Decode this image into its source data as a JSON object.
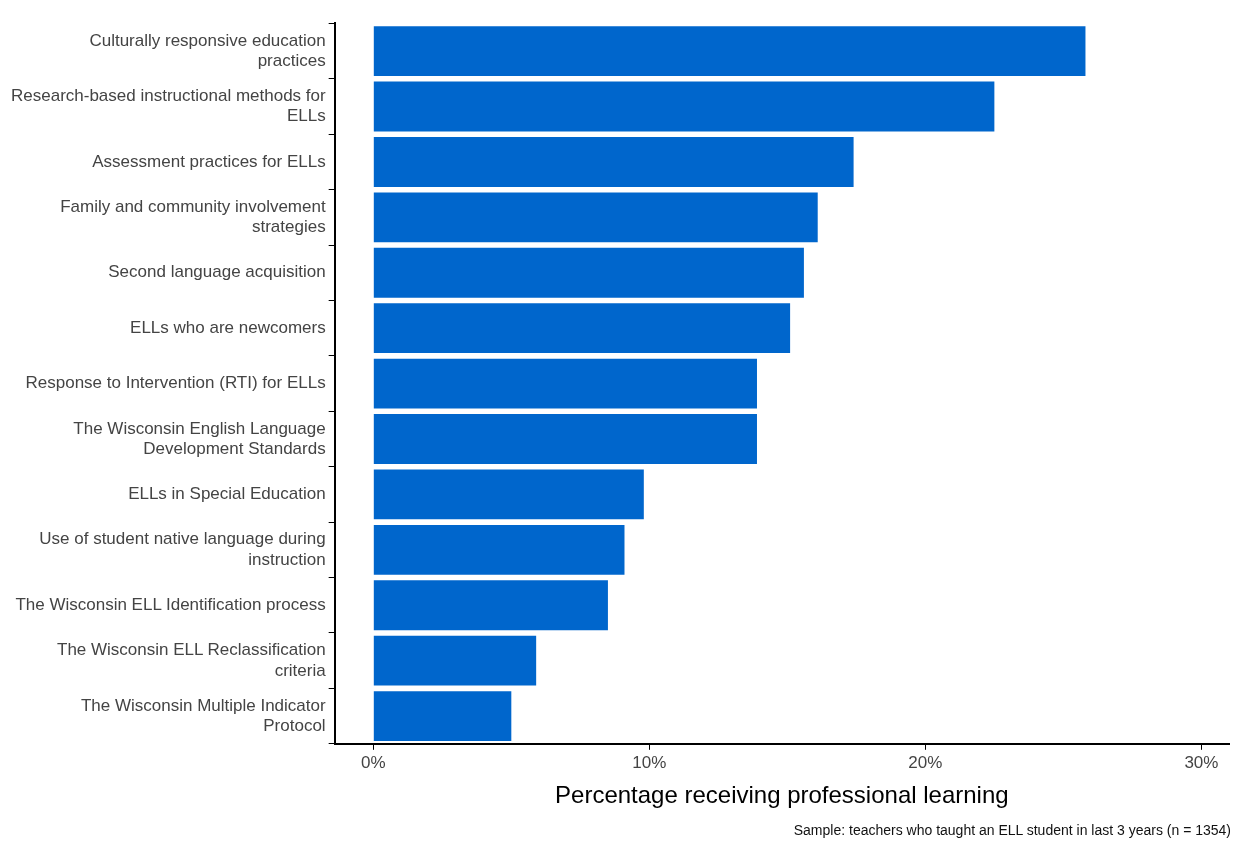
{
  "chart_data": {
    "type": "bar",
    "orientation": "horizontal",
    "categories": [
      "Culturally responsive education practices",
      "Research-based instructional methods for ELLs",
      "Assessment practices for ELLs",
      "Family and community involvement strategies",
      "Second language acquisition",
      "ELLs who are newcomers",
      "Response to Intervention (RTI) for ELLs",
      "The Wisconsin English Language Development Standards",
      "ELLs in Special Education",
      "Use of student native language during instruction",
      "The Wisconsin ELL Identification process",
      "The Wisconsin ELL Reclassification criteria",
      "The Wisconsin Multiple Indicator Protocol"
    ],
    "values": [
      25.8,
      22.5,
      17.4,
      16.1,
      15.6,
      15.1,
      13.9,
      13.9,
      9.8,
      9.1,
      8.5,
      5.9,
      5.0
    ],
    "color": "#0066cc",
    "xlim": [
      -1.4,
      31
    ],
    "xticks": [
      {
        "value": 0,
        "label": "0%"
      },
      {
        "value": 10,
        "label": "10%"
      },
      {
        "value": 20,
        "label": "20%"
      },
      {
        "value": 30,
        "label": "30%"
      }
    ],
    "xlabel": "Percentage receiving professional learning",
    "annotations": [
      "Sample: teachers who taught an ELL student in last 3 years (n = 1354)"
    ],
    "grid": false,
    "legend": false
  }
}
